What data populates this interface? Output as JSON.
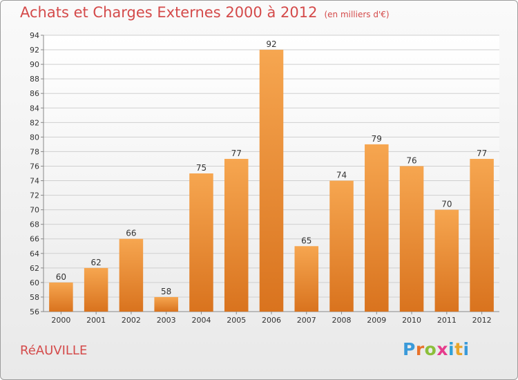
{
  "header": {
    "title": "Achats et Charges Externes 2000 à 2012",
    "unit": "(en milliers d'€)"
  },
  "footer": {
    "location": "RéAUVILLE",
    "logo_letters": [
      "P",
      "r",
      "o",
      "x",
      "i",
      "t",
      "i"
    ],
    "logo_colors": [
      "#3a9ad9",
      "#e8722a",
      "#8bbf3a",
      "#e63b8c",
      "#2fa0d8",
      "#e8a52a",
      "#3a9ad9"
    ]
  },
  "chart_data": {
    "type": "bar",
    "title": "Achats et Charges Externes 2000 à 2012",
    "subtitle": "(en milliers d'€)",
    "categories": [
      "2000",
      "2001",
      "2002",
      "2003",
      "2004",
      "2005",
      "2006",
      "2007",
      "2008",
      "2009",
      "2010",
      "2011",
      "2012"
    ],
    "values": [
      60,
      62,
      66,
      58,
      75,
      77,
      92,
      65,
      74,
      79,
      76,
      70,
      77
    ],
    "ylim": [
      56,
      94
    ],
    "yticks": [
      56,
      58,
      60,
      62,
      64,
      66,
      68,
      70,
      72,
      74,
      76,
      78,
      80,
      82,
      84,
      86,
      88,
      90,
      92,
      94
    ],
    "grid": true,
    "data_labels": true,
    "colors": {
      "bar_top": "#f6a650",
      "bar_bottom": "#d9731e",
      "grid": "#cfcfcf",
      "axis": "#888888",
      "text": "#333333"
    }
  }
}
